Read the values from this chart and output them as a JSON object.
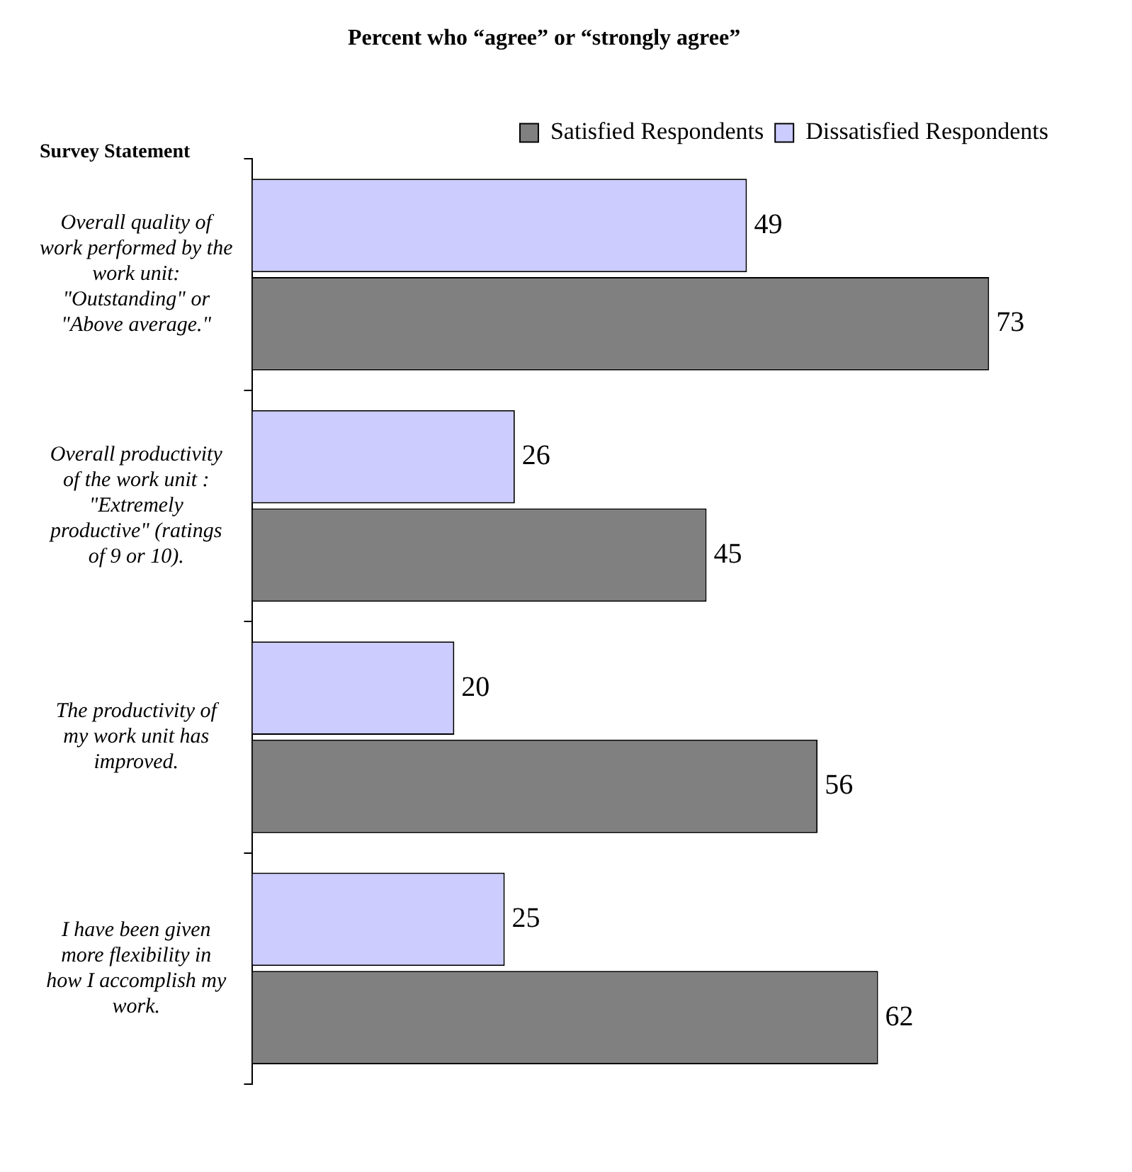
{
  "chart_data": {
    "type": "bar",
    "orientation": "horizontal",
    "title": "Percent who “agree” or “strongly agree”",
    "ylabel": "Survey Statement",
    "categories": [
      "Overall quality of work performed by the work unit: \"Outstanding\" or \"Above average.\"",
      "Overall productivity of the work unit : \"Extremely productive\" (ratings of 9 or 10).",
      "The productivity of my work unit has improved.",
      "I have been given more flexibility in how I accomplish my work."
    ],
    "series": [
      {
        "name": "Satisfied Respondents",
        "color": "#808080",
        "values": [
          73,
          45,
          56,
          62
        ]
      },
      {
        "name": "Dissatisfied Respondents",
        "color": "#ccccff",
        "values": [
          49,
          26,
          20,
          25
        ]
      }
    ],
    "data_labels": true,
    "legend": "top right",
    "grid": false
  }
}
